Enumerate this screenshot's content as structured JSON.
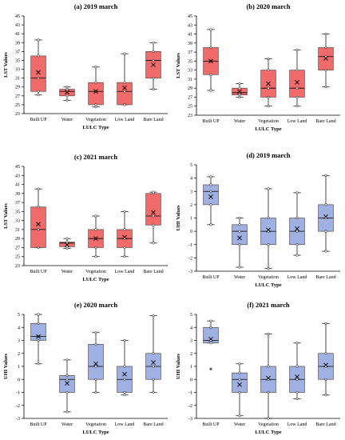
{
  "chart_data": [
    {
      "type": "box",
      "title": "(a) 2019 march",
      "xlabel": "LULC Type",
      "ylabel": "LST Values",
      "ylim": [
        23,
        45
      ],
      "yticks": [
        23,
        25,
        27,
        29,
        31,
        33,
        35,
        37,
        39,
        41,
        43,
        45
      ],
      "categories": [
        "Built UP",
        "Water",
        "Vegetation",
        "Low Land",
        "Bare Land"
      ],
      "color": "#f26b6b",
      "boxes": [
        {
          "min": 27.2,
          "q1": 28,
          "median": 31,
          "q3": 36,
          "max": 39.6,
          "mean": 32.3,
          "points": [
            27.2,
            28,
            31,
            36,
            39.6
          ]
        },
        {
          "min": 26,
          "q1": 27,
          "median": 28,
          "q3": 28.5,
          "max": 29,
          "mean": 27.8,
          "points": [
            26,
            27,
            28,
            28.5,
            29
          ]
        },
        {
          "min": 24.5,
          "q1": 25,
          "median": 28,
          "q3": 30,
          "max": 33.5,
          "mean": 28,
          "points": [
            24.5,
            25,
            28,
            30,
            33.5
          ]
        },
        {
          "min": 25,
          "q1": 25,
          "median": 28,
          "q3": 30,
          "max": 36.5,
          "mean": 28.8,
          "points": [
            25,
            25,
            28,
            30,
            36.5
          ]
        },
        {
          "min": 28.5,
          "q1": 31,
          "median": 35,
          "q3": 37,
          "max": 39,
          "mean": 34,
          "points": [
            28.5,
            31,
            35,
            37,
            39
          ]
        }
      ]
    },
    {
      "type": "box",
      "title": "(b) 2020 march",
      "xlabel": "LULC Type",
      "ylabel": "LST Values",
      "ylim": [
        23,
        45
      ],
      "yticks": [
        23,
        25,
        27,
        29,
        31,
        33,
        35,
        37,
        39,
        41,
        43,
        45
      ],
      "categories": [
        "Built UP",
        "Water",
        "Vegetation",
        "Low Land",
        "Bare Land"
      ],
      "color": "#f26b6b",
      "boxes": [
        {
          "min": 28.5,
          "q1": 32,
          "median": 35,
          "q3": 38,
          "max": 42,
          "mean": 35,
          "points": [
            28.5,
            32,
            35,
            38,
            42
          ]
        },
        {
          "min": 27,
          "q1": 27.5,
          "median": 28,
          "q3": 29,
          "max": 30,
          "mean": 28.2,
          "points": [
            27,
            27.5,
            28,
            29,
            30
          ]
        },
        {
          "min": 25,
          "q1": 27,
          "median": 29,
          "q3": 33,
          "max": 35.5,
          "mean": 30,
          "points": [
            25,
            27,
            29,
            33,
            35.5
          ]
        },
        {
          "min": 25,
          "q1": 27,
          "median": 29,
          "q3": 33,
          "max": 37.5,
          "mean": 30.3,
          "points": [
            25,
            27,
            29,
            33,
            37.5
          ]
        },
        {
          "min": 29.3,
          "q1": 33,
          "median": 36,
          "q3": 38,
          "max": 41,
          "mean": 35.6,
          "points": [
            29.3,
            33,
            36,
            38,
            41
          ]
        }
      ]
    },
    {
      "type": "box",
      "title": "(c) 2021 march",
      "xlabel": "LULC Type",
      "ylabel": "LST Values",
      "ylim": [
        23,
        45
      ],
      "yticks": [
        23,
        25,
        27,
        29,
        31,
        33,
        35,
        37,
        39,
        41,
        43,
        45
      ],
      "categories": [
        "Built UP",
        "Water",
        "Vegetation",
        "Low Land",
        "Bare Land"
      ],
      "color": "#f26b6b",
      "boxes": [
        {
          "min": 27,
          "q1": 27,
          "median": 31,
          "q3": 36,
          "max": 40,
          "mean": 32.2,
          "points": [
            27,
            27,
            31,
            36,
            40
          ]
        },
        {
          "min": 26.8,
          "q1": 27.2,
          "median": 28,
          "q3": 28.2,
          "max": 29,
          "mean": 27.6,
          "points": [
            26.8,
            27.2,
            28,
            28.2,
            29
          ]
        },
        {
          "min": 25,
          "q1": 27,
          "median": 29,
          "q3": 31,
          "max": 34,
          "mean": 29,
          "points": [
            25,
            27,
            29,
            31,
            34
          ]
        },
        {
          "min": 25,
          "q1": 27,
          "median": 29,
          "q3": 31,
          "max": 35,
          "mean": 29.3,
          "points": [
            25,
            27,
            29,
            31,
            35
          ]
        },
        {
          "min": 28,
          "q1": 32,
          "median": 34,
          "q3": 39,
          "max": 39.3,
          "mean": 34.8,
          "points": [
            28,
            32,
            34,
            39,
            39.3
          ]
        }
      ]
    },
    {
      "type": "box",
      "title": "(d) 2019 march",
      "xlabel": "LULC Type",
      "ylabel": "UHI Values",
      "ylim": [
        -3,
        5
      ],
      "yticks": [
        -3,
        -2,
        -1,
        0,
        1,
        2,
        3,
        4,
        5
      ],
      "categories": [
        "Built UP",
        "Water",
        "Vegetation",
        "Low Land",
        "Bare Land"
      ],
      "color": "#9fb0e2",
      "boxes": [
        {
          "min": 0.5,
          "q1": 2,
          "median": 3,
          "q3": 3.5,
          "max": 4.1,
          "mean": 2.6,
          "points": [
            0.5,
            2,
            3,
            3.5,
            4.1
          ]
        },
        {
          "min": -2.7,
          "q1": -1,
          "median": 0,
          "q3": 0.5,
          "max": 1,
          "mean": -0.5,
          "points": [
            -2.7,
            -1,
            0,
            0.5,
            1
          ]
        },
        {
          "min": -2.8,
          "q1": -1,
          "median": 0,
          "q3": 1,
          "max": 3.2,
          "mean": 0.1,
          "points": [
            -2.8,
            -1,
            0,
            1,
            3.2
          ]
        },
        {
          "min": -1.8,
          "q1": -1,
          "median": 0,
          "q3": 1,
          "max": 2.9,
          "mean": 0.2,
          "points": [
            -1.8,
            -1,
            0,
            1,
            2.9
          ]
        },
        {
          "min": -1.5,
          "q1": 0,
          "median": 1,
          "q3": 2,
          "max": 4.2,
          "mean": 1.1,
          "points": [
            -1.5,
            0,
            1,
            2,
            4.2
          ]
        }
      ]
    },
    {
      "type": "box",
      "title": "(e) 2020 march",
      "xlabel": "LULC Type",
      "ylabel": "UHI Values",
      "ylim": [
        -3,
        5
      ],
      "yticks": [
        -3,
        -2,
        -1,
        0,
        1,
        2,
        3,
        4,
        5
      ],
      "categories": [
        "Built UP",
        "Water",
        "Vegetation",
        "Low Land",
        "Bare Land"
      ],
      "color": "#9fb0e2",
      "boxes": [
        {
          "min": 1.2,
          "q1": 3,
          "median": 3.3,
          "q3": 4.3,
          "max": 5,
          "mean": 3.3,
          "points": [
            1.2,
            3,
            3.3,
            4.3,
            5
          ]
        },
        {
          "min": -2.5,
          "q1": -1,
          "median": 0,
          "q3": 0.3,
          "max": 1.5,
          "mean": -0.3,
          "points": [
            -2.5,
            -1,
            0,
            0.3,
            1.5
          ]
        },
        {
          "min": -1,
          "q1": 0,
          "median": 1,
          "q3": 2.7,
          "max": 3.6,
          "mean": 1.2,
          "points": [
            -1,
            0,
            1,
            2.7,
            3.6
          ]
        },
        {
          "min": -1.2,
          "q1": -1,
          "median": 0,
          "q3": 1,
          "max": 3,
          "mean": 0.4,
          "points": [
            -1.2,
            -1,
            0,
            1,
            3
          ]
        },
        {
          "min": -1,
          "q1": 0,
          "median": 1,
          "q3": 2,
          "max": 4.9,
          "mean": 1.3,
          "points": [
            -1,
            0,
            1,
            2,
            4.9
          ]
        }
      ]
    },
    {
      "type": "box",
      "title": "(f) 2021 march",
      "xlabel": "LULC Type",
      "ylabel": "UHI Values",
      "ylim": [
        -3,
        5
      ],
      "yticks": [
        -3,
        -2,
        -1,
        0,
        1,
        2,
        3,
        4,
        5
      ],
      "categories": [
        "Built UP",
        "Water",
        "Vegetation",
        "Low Land",
        "Bare Land"
      ],
      "color": "#9fb0e2",
      "boxes": [
        {
          "min": 2.8,
          "q1": 2.8,
          "median": 3,
          "q3": 4,
          "max": 4.5,
          "mean": 3.1,
          "points": [
            2.8,
            3,
            4,
            4.5
          ],
          "outliers": [
            0.8
          ]
        },
        {
          "min": -2.8,
          "q1": -1,
          "median": 0,
          "q3": 0.5,
          "max": 1.2,
          "mean": -0.4,
          "points": [
            -2.8,
            -1,
            0,
            0.5,
            1.2
          ]
        },
        {
          "min": -3,
          "q1": -1,
          "median": 0,
          "q3": 1,
          "max": 3.5,
          "mean": 0.1,
          "points": [
            -3,
            -1,
            0,
            1,
            3.5
          ]
        },
        {
          "min": -1.5,
          "q1": -1,
          "median": 0,
          "q3": 1,
          "max": 2.8,
          "mean": 0.2,
          "points": [
            -1.5,
            -1,
            0,
            1,
            2.8
          ]
        },
        {
          "min": -1.2,
          "q1": 0,
          "median": 1,
          "q3": 2,
          "max": 4.3,
          "mean": 1.1,
          "points": [
            -1.2,
            0,
            1,
            2,
            4.3
          ]
        }
      ]
    }
  ]
}
